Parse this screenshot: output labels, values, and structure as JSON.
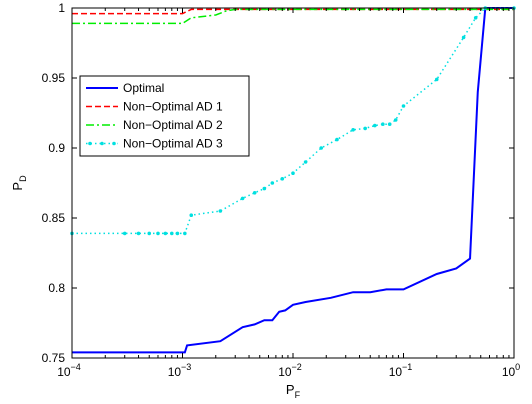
{
  "chart_data": {
    "type": "line",
    "title": "",
    "xlabel": "P",
    "xlabel_sub": "F",
    "ylabel": "P",
    "ylabel_sub": "D",
    "xscale": "log",
    "xlim": [
      0.0001,
      1
    ],
    "ylim": [
      0.75,
      1
    ],
    "grid": false,
    "legend_position": "upper-left",
    "x_ticks": [
      {
        "value": 0.0001,
        "base": "10",
        "exp": "−4"
      },
      {
        "value": 0.001,
        "base": "10",
        "exp": "−3"
      },
      {
        "value": 0.01,
        "base": "10",
        "exp": "−2"
      },
      {
        "value": 0.1,
        "base": "10",
        "exp": "−1"
      },
      {
        "value": 1,
        "base": "10",
        "exp": "0"
      }
    ],
    "y_ticks": [
      {
        "value": 0.75,
        "label": "0.75"
      },
      {
        "value": 0.8,
        "label": "0.8"
      },
      {
        "value": 0.85,
        "label": "0.85"
      },
      {
        "value": 0.9,
        "label": "0.9"
      },
      {
        "value": 0.95,
        "label": "0.95"
      },
      {
        "value": 1,
        "label": "1"
      }
    ],
    "series": [
      {
        "name": "Optimal",
        "color": "#0000ff",
        "dash": "solid",
        "marker": "none",
        "x": [
          0.0001,
          0.00105,
          0.0011,
          0.0022,
          0.0035,
          0.0045,
          0.0055,
          0.0065,
          0.0075,
          0.0085,
          0.01,
          0.013,
          0.022,
          0.035,
          0.05,
          0.07,
          0.1,
          0.2,
          0.3,
          0.4,
          0.47,
          0.55,
          0.62,
          1
        ],
        "y": [
          0.754,
          0.754,
          0.759,
          0.762,
          0.772,
          0.774,
          0.777,
          0.777,
          0.783,
          0.784,
          0.788,
          0.79,
          0.793,
          0.797,
          0.797,
          0.799,
          0.799,
          0.81,
          0.814,
          0.821,
          0.94,
          1.0,
          1.0,
          1.0
        ]
      },
      {
        "name": "Non−Optimal AD 1",
        "color": "#ff0000",
        "dash": "dashed",
        "marker": "none",
        "x": [
          0.0001,
          0.001,
          0.0012,
          1
        ],
        "y": [
          0.996,
          0.996,
          0.999,
          0.999
        ]
      },
      {
        "name": "Non−Optimal AD 2",
        "color": "#00ee00",
        "dash": "dashdot",
        "marker": "none",
        "x": [
          0.0001,
          0.001,
          0.0012,
          0.002,
          0.0025,
          0.003,
          1
        ],
        "y": [
          0.989,
          0.989,
          0.993,
          0.995,
          0.998,
          0.999,
          0.999
        ]
      },
      {
        "name": "Non−Optimal AD 3",
        "color": "#00e0e0",
        "dash": "dotted",
        "marker": "point",
        "x": [
          0.0001,
          0.0003,
          0.0004,
          0.0005,
          0.0006,
          0.0007,
          0.0008,
          0.0009,
          0.00105,
          0.0012,
          0.0022,
          0.0035,
          0.0045,
          0.0055,
          0.0065,
          0.008,
          0.01,
          0.013,
          0.018,
          0.025,
          0.035,
          0.045,
          0.055,
          0.065,
          0.075,
          0.085,
          0.1,
          0.2,
          0.35,
          0.45,
          0.55,
          1
        ],
        "y": [
          0.839,
          0.839,
          0.839,
          0.839,
          0.839,
          0.839,
          0.839,
          0.839,
          0.839,
          0.852,
          0.855,
          0.864,
          0.868,
          0.871,
          0.875,
          0.878,
          0.882,
          0.89,
          0.9,
          0.906,
          0.913,
          0.914,
          0.916,
          0.917,
          0.917,
          0.92,
          0.93,
          0.949,
          0.979,
          0.993,
          1.0,
          1.0
        ]
      }
    ]
  }
}
